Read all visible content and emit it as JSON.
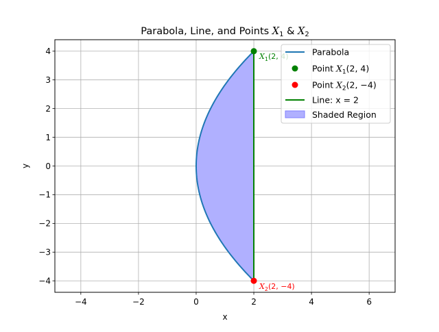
{
  "chart_data": {
    "type": "line",
    "title": "Parabola, Line, and Points X₁ & X₂",
    "xlabel": "x",
    "ylabel": "y",
    "xlim": [
      -4.9,
      6.9
    ],
    "ylim": [
      -4.4,
      4.4
    ],
    "grid": true,
    "legend_position": "top-right",
    "x_ticks": [
      -4,
      -2,
      0,
      2,
      4,
      6
    ],
    "y_ticks": [
      -4,
      -3,
      -2,
      -1,
      0,
      1,
      2,
      3,
      4
    ],
    "x_tick_labels": [
      "−4",
      "−2",
      "0",
      "2",
      "4",
      "6"
    ],
    "y_tick_labels": [
      "−4",
      "−3",
      "−2",
      "−1",
      "0",
      "1",
      "2",
      "3",
      "4"
    ],
    "series": [
      {
        "name": "Parabola",
        "kind": "curve",
        "equation": "x = y^2 / 8",
        "y_range": [
          -4,
          4
        ],
        "color": "#1f77b4"
      },
      {
        "name": "Line: x = 2",
        "kind": "vline",
        "x": 2,
        "y_range": [
          -4,
          4
        ],
        "color": "#008000"
      },
      {
        "name": "Point X₁(2,4)",
        "kind": "point",
        "x": 2,
        "y": 4,
        "color": "#008000"
      },
      {
        "name": "Point X₂(2,−4)",
        "kind": "point",
        "x": 2,
        "y": -4,
        "color": "#ff0000"
      },
      {
        "name": "Shaded Region",
        "kind": "area",
        "between": [
          "parabola",
          "x = 2"
        ],
        "color": "#b0b0ff"
      }
    ],
    "legend": [
      {
        "label": "Parabola",
        "kind": "line",
        "color": "#1f77b4"
      },
      {
        "label": "Point X₁(2,4)",
        "kind": "point",
        "color": "#008000"
      },
      {
        "label": "Point X₂(2,−4)",
        "kind": "point",
        "color": "#ff0000"
      },
      {
        "label": "Line: x = 2",
        "kind": "line",
        "color": "#008000"
      },
      {
        "label": "Shaded Region",
        "kind": "patch",
        "color": "#b0b0ff"
      }
    ],
    "annotations": [
      {
        "text": "X₁(2,4)",
        "x": 2,
        "y": 4,
        "color": "#008000"
      },
      {
        "text": "X₂(2,−4)",
        "x": 2,
        "y": -4,
        "color": "#ff0000"
      }
    ]
  }
}
